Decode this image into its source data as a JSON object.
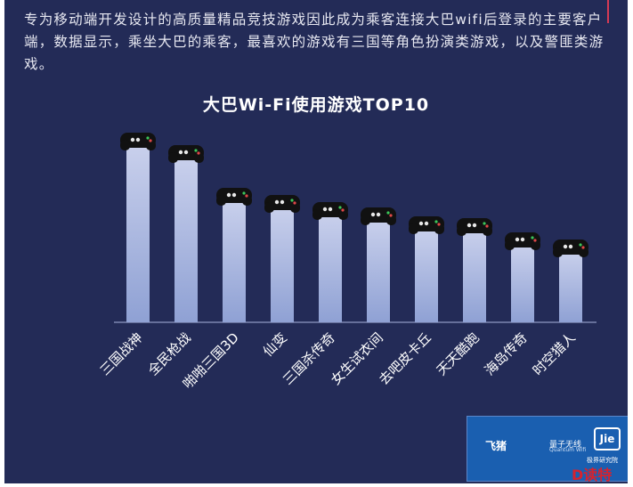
{
  "intro_text": "专为移动端开发设计的高质量精品竞技游戏因此成为乘客连接大巴wifi后登录的主要客户端，数据显示，乘坐大巴的乘客，最喜欢的游戏有三国等角色扮演类游戏，以及警匪类游戏。",
  "chart_data": {
    "type": "bar",
    "title": "大巴Wi-Fi使用游戏TOP10",
    "categories": [
      "三国战神",
      "全民枪战",
      "啪啪三国3D",
      "仙变",
      "三国杀传奇",
      "女生试衣间",
      "去吧皮卡丘",
      "天天酷跑",
      "海岛传奇",
      "时空猎人"
    ],
    "values": [
      100,
      93,
      69,
      65,
      61,
      58,
      53,
      52,
      44,
      40
    ],
    "bar_color_top": "#c9d0ec",
    "bar_color_bottom": "#8fa1d4"
  },
  "logos": {
    "brand1": "飞猪",
    "brand2": "量子无线",
    "brand2_en": "Quantum Wifi",
    "brand3": "Jie",
    "brand3_sub": "极界研究院"
  },
  "watermark": "D读特",
  "colors": {
    "background": "#232b57",
    "icon": "#111111"
  }
}
